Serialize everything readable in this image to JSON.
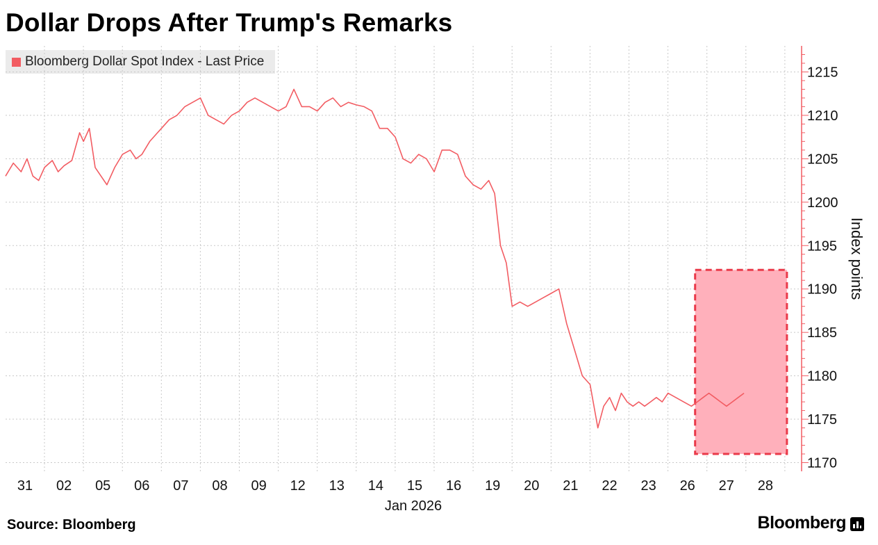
{
  "title": "Dollar Drops After Trump's Remarks",
  "source": "Source: Bloomberg",
  "brand": "Bloomberg",
  "colors": {
    "line": "#f25c62",
    "highlight_fill": "#ffb0bb",
    "highlight_border": "#ea3a4a",
    "axis": "#f25c62",
    "grid": "#c8c8c8"
  },
  "chart_data": {
    "type": "line",
    "title": "Dollar Drops After Trump's Remarks",
    "xlabel": "Jan 2026",
    "ylabel": "Index points",
    "ylim": [
      1169,
      1218
    ],
    "yticks": [
      1215,
      1210,
      1205,
      1200,
      1195,
      1190,
      1185,
      1180,
      1175,
      1170
    ],
    "xticks": [
      "31",
      "02",
      "05",
      "06",
      "07",
      "08",
      "09",
      "12",
      "13",
      "14",
      "15",
      "16",
      "19",
      "20",
      "21",
      "22",
      "23",
      "26",
      "27",
      "28"
    ],
    "grid": true,
    "legend_position": "top-left",
    "series": [
      {
        "name": "Bloomberg Dollar Spot Index - Last Price",
        "x": [
          0,
          0.2,
          0.4,
          0.55,
          0.7,
          0.85,
          1.0,
          1.2,
          1.35,
          1.5,
          1.7,
          1.9,
          2.0,
          2.15,
          2.3,
          2.45,
          2.6,
          2.8,
          3.0,
          3.2,
          3.35,
          3.5,
          3.7,
          3.9,
          4.0,
          4.2,
          4.4,
          4.6,
          4.8,
          5.0,
          5.2,
          5.4,
          5.6,
          5.8,
          6.0,
          6.2,
          6.4,
          6.6,
          6.8,
          7.0,
          7.2,
          7.4,
          7.6,
          7.8,
          8.0,
          8.2,
          8.4,
          8.6,
          8.8,
          9.0,
          9.2,
          9.4,
          9.6,
          9.8,
          10.0,
          10.2,
          10.4,
          10.6,
          10.8,
          11.0,
          11.2,
          11.4,
          11.6,
          11.8,
          12.0,
          12.2,
          12.4,
          12.55,
          12.7,
          12.85,
          13.0,
          13.2,
          13.4,
          13.6,
          13.8,
          14.0,
          14.2,
          14.4,
          14.6,
          14.8,
          15.0,
          15.2,
          15.35,
          15.5,
          15.65,
          15.8,
          15.95,
          16.1,
          16.25,
          16.4,
          16.55,
          16.7,
          16.85,
          17.0,
          17.2,
          17.4,
          17.6,
          17.75,
          17.9,
          18.05,
          18.2,
          18.35,
          18.5,
          18.65,
          18.8,
          18.95
        ],
        "values": [
          1203.0,
          1204.5,
          1203.5,
          1205.0,
          1203.0,
          1202.5,
          1204.0,
          1204.8,
          1203.5,
          1204.2,
          1204.8,
          1208.0,
          1207.0,
          1208.5,
          1204.0,
          1203.0,
          1202.0,
          1204.0,
          1205.5,
          1206.0,
          1205.0,
          1205.5,
          1207.0,
          1208.0,
          1208.5,
          1209.5,
          1210.0,
          1211.0,
          1211.5,
          1212.0,
          1210.0,
          1209.5,
          1209.0,
          1210.0,
          1210.5,
          1211.5,
          1212.0,
          1211.5,
          1211.0,
          1210.5,
          1211.0,
          1213.0,
          1211.0,
          1211.0,
          1210.5,
          1211.5,
          1212.0,
          1211.0,
          1211.5,
          1211.2,
          1211.0,
          1210.5,
          1208.5,
          1208.5,
          1207.5,
          1205.0,
          1204.5,
          1205.5,
          1205.0,
          1203.5,
          1206.0,
          1206.0,
          1205.5,
          1203.0,
          1202.0,
          1201.5,
          1202.5,
          1201.0,
          1195.0,
          1193.0,
          1188.0,
          1188.5,
          1188.0,
          1188.5,
          1189.0,
          1189.5,
          1190.0,
          1186.0,
          1183.0,
          1180.0,
          1179.0,
          1174.0,
          1176.5,
          1177.5,
          1176.0,
          1178.0,
          1177.0,
          1176.5,
          1177.0,
          1176.5,
          1177.0,
          1177.5,
          1177.0,
          1178.0,
          1177.5,
          1177.0,
          1176.5,
          1177.0,
          1177.5,
          1178.0,
          1177.5,
          1177.0,
          1176.5,
          1177.0,
          1177.5,
          1178.0
        ]
      }
    ]
  }
}
